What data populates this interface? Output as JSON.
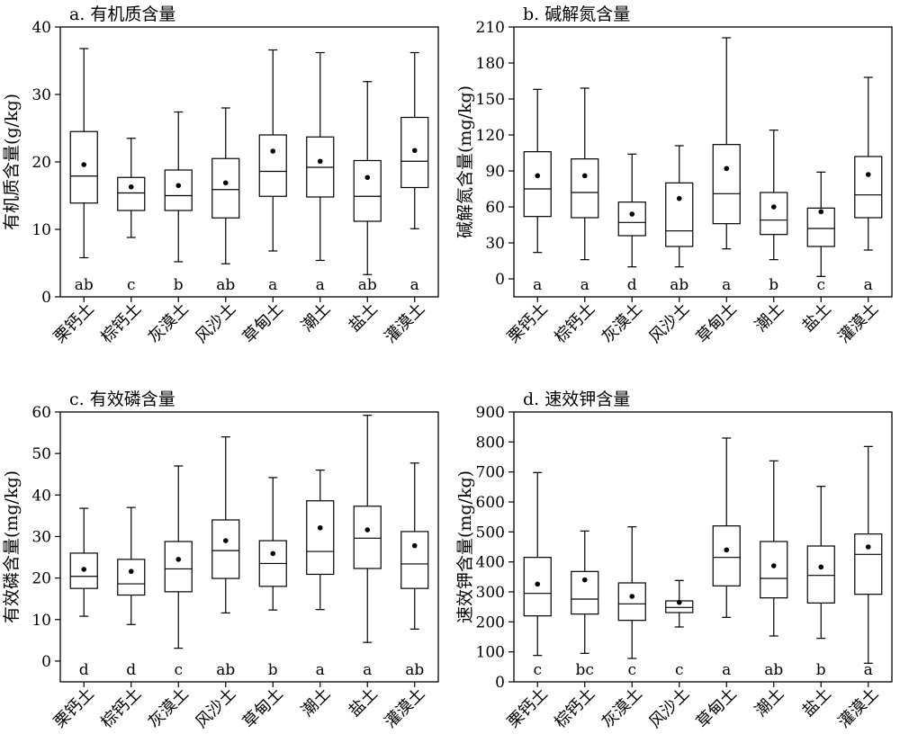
{
  "chart_data": [
    {
      "type": "box",
      "title": "a. 有机质含量",
      "ylabel": "有机质含量(g/kg)",
      "xlabel": "",
      "ylim": [
        0,
        40
      ],
      "yticks": [
        0,
        10,
        20,
        30,
        40
      ],
      "categories": [
        "栗钙土",
        "棕钙土",
        "灰漠土",
        "风沙土",
        "草甸土",
        "潮土",
        "盐土",
        "灌漠土"
      ],
      "boxes": [
        {
          "min": 5.8,
          "q1": 13.9,
          "median": 17.9,
          "q3": 24.5,
          "max": 36.8,
          "mean": 19.6,
          "group": "ab"
        },
        {
          "min": 8.8,
          "q1": 12.8,
          "median": 15.4,
          "q3": 17.7,
          "max": 23.5,
          "mean": 16.3,
          "group": "c"
        },
        {
          "min": 5.2,
          "q1": 12.8,
          "median": 15.0,
          "q3": 18.8,
          "max": 27.4,
          "mean": 16.5,
          "group": "b"
        },
        {
          "min": 4.9,
          "q1": 11.7,
          "median": 15.9,
          "q3": 20.5,
          "max": 28.0,
          "mean": 16.9,
          "group": "ab"
        },
        {
          "min": 6.8,
          "q1": 14.9,
          "median": 18.6,
          "q3": 24.0,
          "max": 36.6,
          "mean": 21.6,
          "group": "a"
        },
        {
          "min": 5.4,
          "q1": 14.8,
          "median": 19.2,
          "q3": 23.7,
          "max": 36.2,
          "mean": 20.1,
          "group": "a"
        },
        {
          "min": 3.3,
          "q1": 11.2,
          "median": 14.9,
          "q3": 20.2,
          "max": 31.9,
          "mean": 17.7,
          "group": "ab"
        },
        {
          "min": 10.1,
          "q1": 16.2,
          "median": 20.1,
          "q3": 26.6,
          "max": 36.2,
          "mean": 21.7,
          "group": "a"
        }
      ]
    },
    {
      "type": "box",
      "title": "b. 碱解氮含量",
      "ylabel": "碱解氮含量(mg/kg)",
      "xlabel": "",
      "ylim": [
        -15,
        210
      ],
      "yticks": [
        0,
        30,
        60,
        90,
        120,
        150,
        180,
        210
      ],
      "categories": [
        "栗钙土",
        "棕钙土",
        "灰漠土",
        "风沙土",
        "草甸土",
        "潮土",
        "盐土",
        "灌漠土"
      ],
      "boxes": [
        {
          "min": 22,
          "q1": 52,
          "median": 75,
          "q3": 106,
          "max": 158,
          "mean": 86,
          "group": "a"
        },
        {
          "min": 16,
          "q1": 51,
          "median": 72,
          "q3": 100,
          "max": 159,
          "mean": 86,
          "group": "a"
        },
        {
          "min": 10,
          "q1": 36,
          "median": 47,
          "q3": 64,
          "max": 104,
          "mean": 54,
          "group": "d"
        },
        {
          "min": 10,
          "q1": 27,
          "median": 40,
          "q3": 80,
          "max": 111,
          "mean": 67,
          "group": "ab"
        },
        {
          "min": 25,
          "q1": 46,
          "median": 71,
          "q3": 112,
          "max": 201,
          "mean": 92,
          "group": "a"
        },
        {
          "min": 16,
          "q1": 37,
          "median": 49,
          "q3": 72,
          "max": 124,
          "mean": 60,
          "group": "b"
        },
        {
          "min": 2,
          "q1": 27,
          "median": 42,
          "q3": 59,
          "max": 89,
          "mean": 56,
          "group": "c"
        },
        {
          "min": 24,
          "q1": 51,
          "median": 70,
          "q3": 102,
          "max": 168,
          "mean": 87,
          "group": "a"
        }
      ]
    },
    {
      "type": "box",
      "title": "c. 有效磷含量",
      "ylabel": "有效磷含量(mg/kg)",
      "xlabel": "",
      "ylim": [
        -5,
        60
      ],
      "yticks": [
        0,
        10,
        20,
        30,
        40,
        50,
        60
      ],
      "categories": [
        "栗钙土",
        "棕钙土",
        "灰漠土",
        "风沙土",
        "草甸土",
        "潮土",
        "盐土",
        "灌漠土"
      ],
      "boxes": [
        {
          "min": 10.8,
          "q1": 17.5,
          "median": 20.4,
          "q3": 26.0,
          "max": 36.8,
          "mean": 22.1,
          "group": "d"
        },
        {
          "min": 8.8,
          "q1": 15.9,
          "median": 18.6,
          "q3": 24.5,
          "max": 37.0,
          "mean": 21.6,
          "group": "d"
        },
        {
          "min": 3.1,
          "q1": 16.7,
          "median": 22.2,
          "q3": 28.8,
          "max": 47.0,
          "mean": 24.5,
          "group": "c"
        },
        {
          "min": 11.6,
          "q1": 19.9,
          "median": 26.6,
          "q3": 34.0,
          "max": 54.0,
          "mean": 29.0,
          "group": "ab"
        },
        {
          "min": 12.3,
          "q1": 18.0,
          "median": 23.5,
          "q3": 29.0,
          "max": 44.2,
          "mean": 25.9,
          "group": "b"
        },
        {
          "min": 12.4,
          "q1": 20.9,
          "median": 26.4,
          "q3": 38.6,
          "max": 46.0,
          "mean": 32.1,
          "group": "a"
        },
        {
          "min": 4.5,
          "q1": 22.3,
          "median": 29.6,
          "q3": 37.3,
          "max": 59.2,
          "mean": 31.6,
          "group": "a"
        },
        {
          "min": 7.7,
          "q1": 17.5,
          "median": 23.4,
          "q3": 31.2,
          "max": 47.7,
          "mean": 27.8,
          "group": "ab"
        }
      ]
    },
    {
      "type": "box",
      "title": "d. 速效钾含量",
      "ylabel": "速效钾含量(mg/kg)",
      "xlabel": "",
      "ylim": [
        0,
        900
      ],
      "yticks": [
        0,
        100,
        200,
        300,
        400,
        500,
        600,
        700,
        800,
        900
      ],
      "categories": [
        "栗钙土",
        "棕钙土",
        "灰漠土",
        "风沙土",
        "草甸土",
        "潮土",
        "盐土",
        "灌漠土"
      ],
      "boxes": [
        {
          "min": 88,
          "q1": 220,
          "median": 295,
          "q3": 415,
          "max": 698,
          "mean": 326,
          "group": "c"
        },
        {
          "min": 95,
          "q1": 226,
          "median": 276,
          "q3": 368,
          "max": 503,
          "mean": 340,
          "group": "bc"
        },
        {
          "min": 78,
          "q1": 205,
          "median": 260,
          "q3": 330,
          "max": 517,
          "mean": 285,
          "group": "c"
        },
        {
          "min": 183,
          "q1": 231,
          "median": 248,
          "q3": 270,
          "max": 338,
          "mean": 265,
          "group": "c"
        },
        {
          "min": 215,
          "q1": 320,
          "median": 415,
          "q3": 520,
          "max": 813,
          "mean": 440,
          "group": "a"
        },
        {
          "min": 153,
          "q1": 280,
          "median": 345,
          "q3": 468,
          "max": 737,
          "mean": 387,
          "group": "ab"
        },
        {
          "min": 145,
          "q1": 263,
          "median": 355,
          "q3": 453,
          "max": 652,
          "mean": 383,
          "group": "b"
        },
        {
          "min": 62,
          "q1": 292,
          "median": 425,
          "q3": 493,
          "max": 785,
          "mean": 450,
          "group": "a"
        }
      ]
    }
  ]
}
